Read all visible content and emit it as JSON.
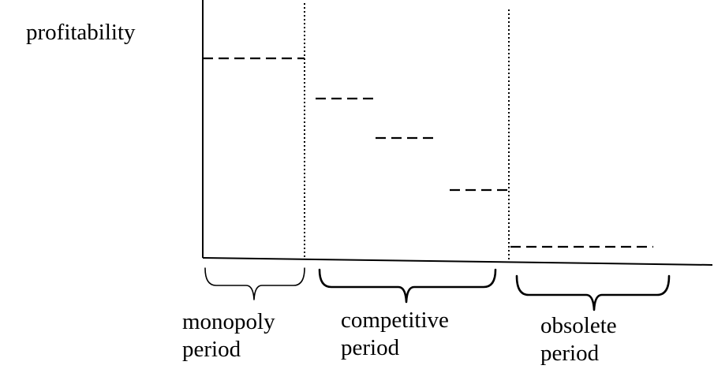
{
  "diagram": {
    "axis_label": "profitability",
    "periods": [
      {
        "id": "monopoly",
        "line1": "monopoly",
        "line2": "period"
      },
      {
        "id": "competitive",
        "line1": "competitive",
        "line2": "period"
      },
      {
        "id": "obsolete",
        "line1": "obsolete",
        "line2": "period"
      }
    ]
  }
}
